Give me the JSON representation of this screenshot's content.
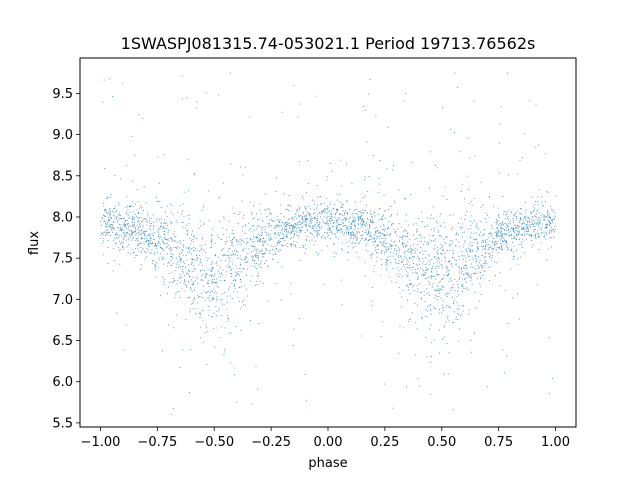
{
  "chart_data": {
    "type": "scatter",
    "title": "1SWASPJ081315.74-053021.1 Period 19713.76562s",
    "xlabel": "phase",
    "ylabel": "flux",
    "xlim": [
      -1.09,
      1.09
    ],
    "ylim": [
      5.45,
      9.93
    ],
    "grid": false,
    "legend": "none",
    "marker_color": "#1f77b4",
    "x_ticks": [
      -1.0,
      -0.75,
      -0.5,
      -0.25,
      0.0,
      0.25,
      0.5,
      0.75,
      1.0
    ],
    "x_tick_labels": [
      "−1.00",
      "−0.75",
      "−0.50",
      "−0.25",
      "0.00",
      "0.25",
      "0.50",
      "0.75",
      "1.00"
    ],
    "y_ticks": [
      5.5,
      6.0,
      6.5,
      7.0,
      7.5,
      8.0,
      8.5,
      9.0,
      9.5
    ],
    "y_tick_labels": [
      "5.5",
      "6.0",
      "6.5",
      "7.0",
      "7.5",
      "8.0",
      "8.5",
      "9.0",
      "9.5"
    ],
    "series": [
      {
        "phase": [
          -1.0,
          -0.95,
          -0.9,
          -0.85,
          -0.8,
          -0.75,
          -0.7,
          -0.65,
          -0.6,
          -0.55,
          -0.5,
          -0.45,
          -0.4,
          -0.35,
          -0.3,
          -0.25,
          -0.2,
          -0.15,
          -0.1,
          -0.05,
          0.0,
          0.05,
          0.1,
          0.15,
          0.2,
          0.25,
          0.3,
          0.35,
          0.4,
          0.45,
          0.5,
          0.55,
          0.6,
          0.65,
          0.7,
          0.75,
          0.8,
          0.85,
          0.9,
          0.95,
          1.0
        ],
        "flux_center": [
          7.92,
          7.92,
          7.9,
          7.86,
          7.8,
          7.72,
          7.62,
          7.52,
          7.42,
          7.33,
          7.27,
          7.28,
          7.38,
          7.52,
          7.65,
          7.76,
          7.84,
          7.89,
          7.92,
          7.93,
          7.93,
          7.93,
          7.9,
          7.86,
          7.8,
          7.72,
          7.62,
          7.52,
          7.42,
          7.33,
          7.27,
          7.28,
          7.38,
          7.52,
          7.65,
          7.76,
          7.84,
          7.89,
          7.92,
          7.93,
          7.92
        ],
        "flux_spread": [
          0.13,
          0.13,
          0.14,
          0.15,
          0.16,
          0.18,
          0.22,
          0.26,
          0.3,
          0.34,
          0.36,
          0.36,
          0.32,
          0.26,
          0.2,
          0.16,
          0.14,
          0.13,
          0.13,
          0.13,
          0.13,
          0.13,
          0.14,
          0.15,
          0.16,
          0.18,
          0.22,
          0.26,
          0.3,
          0.34,
          0.36,
          0.36,
          0.32,
          0.26,
          0.2,
          0.16,
          0.14,
          0.13,
          0.13,
          0.13,
          0.13
        ]
      }
    ]
  }
}
